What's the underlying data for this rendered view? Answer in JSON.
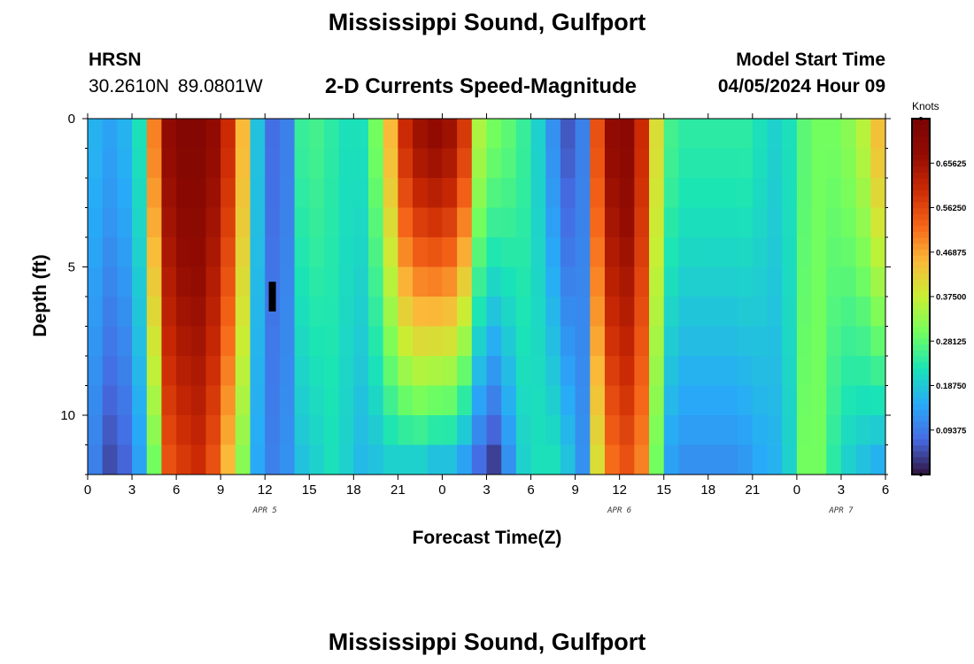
{
  "header": {
    "title": "Mississippi Sound, Gulfport",
    "station_code": "HRSN",
    "station_coords": "30.2610N  89.0801W",
    "subtitle": "2-D Currents Speed-Magnitude",
    "model_start_label": "Model Start Time",
    "model_start_value": "04/05/2024 Hour 09"
  },
  "footer": {
    "title": "Mississippi Sound, Gulfport"
  },
  "chart_data": {
    "type": "heatmap",
    "title": "2-D Currents Speed-Magnitude",
    "xlabel": "Forecast Time(Z)",
    "ylabel": "Depth (ft)",
    "colorbar_label": "Knots",
    "x_range": [
      0,
      54
    ],
    "y_range": [
      0,
      12
    ],
    "x_tick_labels": [
      "0",
      "3",
      "6",
      "9",
      "12",
      "15",
      "18",
      "21",
      "0",
      "3",
      "6",
      "9",
      "12",
      "15",
      "18",
      "21",
      "0",
      "3",
      "6"
    ],
    "y_tick_labels": [
      "0",
      "5",
      "10"
    ],
    "y_tick_values": [
      0,
      5,
      10
    ],
    "date_labels": [
      {
        "text": "APR 5",
        "hour": 12
      },
      {
        "text": "APR 6",
        "hour": 36
      },
      {
        "text": "APR 7",
        "hour": 51
      }
    ],
    "colorbar_range": [
      0,
      0.75
    ],
    "colorbar_ticks": [
      0.09375,
      0.1875,
      0.28125,
      0.375,
      0.46875,
      0.5625,
      0.65625
    ],
    "colorbar_tick_labels": [
      "0.09375",
      "0.18750",
      "0.28125",
      "0.37500",
      "0.46875",
      "0.56250",
      "0.65625"
    ],
    "colormap": "turbo",
    "missing_color": "#000000",
    "missing_cell": {
      "hour": 12.5,
      "depth": [
        5.5,
        6.5
      ]
    },
    "hourly_speed_profiles": [
      {
        "hour": 0,
        "surface": 0.16,
        "bottom": 0.1
      },
      {
        "hour": 1,
        "surface": 0.14,
        "bottom": 0.05
      },
      {
        "hour": 2,
        "surface": 0.16,
        "bottom": 0.07
      },
      {
        "hour": 3,
        "surface": 0.22,
        "bottom": 0.14
      },
      {
        "hour": 4,
        "surface": 0.5,
        "bottom": 0.3
      },
      {
        "hour": 5,
        "surface": 0.68,
        "bottom": 0.55
      },
      {
        "hour": 6,
        "surface": 0.72,
        "bottom": 0.58
      },
      {
        "hour": 7,
        "surface": 0.72,
        "bottom": 0.6
      },
      {
        "hour": 8,
        "surface": 0.68,
        "bottom": 0.55
      },
      {
        "hour": 9,
        "surface": 0.6,
        "bottom": 0.45
      },
      {
        "hour": 10,
        "surface": 0.45,
        "bottom": 0.32
      },
      {
        "hour": 11,
        "surface": 0.18,
        "bottom": 0.15
      },
      {
        "hour": 12,
        "surface": 0.08,
        "bottom": 0.1
      },
      {
        "hour": 13,
        "surface": 0.1,
        "bottom": 0.12
      },
      {
        "hour": 14,
        "surface": 0.25,
        "bottom": 0.18
      },
      {
        "hour": 15,
        "surface": 0.26,
        "bottom": 0.2
      },
      {
        "hour": 16,
        "surface": 0.24,
        "bottom": 0.22
      },
      {
        "hour": 17,
        "surface": 0.22,
        "bottom": 0.2
      },
      {
        "hour": 18,
        "surface": 0.22,
        "bottom": 0.17
      },
      {
        "hour": 19,
        "surface": 0.3,
        "bottom": 0.18
      },
      {
        "hour": 20,
        "surface": 0.45,
        "bottom": 0.2
      },
      {
        "hour": 21,
        "surface": 0.6,
        "bottom": 0.2
      },
      {
        "hour": 22,
        "surface": 0.66,
        "bottom": 0.2
      },
      {
        "hour": 23,
        "surface": 0.68,
        "bottom": 0.18
      },
      {
        "hour": 24,
        "surface": 0.66,
        "bottom": 0.18
      },
      {
        "hour": 25,
        "surface": 0.58,
        "bottom": 0.14
      },
      {
        "hour": 26,
        "surface": 0.35,
        "bottom": 0.08
      },
      {
        "hour": 27,
        "surface": 0.3,
        "bottom": 0.04
      },
      {
        "hour": 28,
        "surface": 0.28,
        "bottom": 0.12
      },
      {
        "hour": 29,
        "surface": 0.25,
        "bottom": 0.2
      },
      {
        "hour": 30,
        "surface": 0.2,
        "bottom": 0.22
      },
      {
        "hour": 31,
        "surface": 0.12,
        "bottom": 0.22
      },
      {
        "hour": 32,
        "surface": 0.06,
        "bottom": 0.18
      },
      {
        "hour": 33,
        "surface": 0.1,
        "bottom": 0.12
      },
      {
        "hour": 34,
        "surface": 0.55,
        "bottom": 0.4
      },
      {
        "hour": 35,
        "surface": 0.68,
        "bottom": 0.52
      },
      {
        "hour": 36,
        "surface": 0.7,
        "bottom": 0.55
      },
      {
        "hour": 37,
        "surface": 0.6,
        "bottom": 0.5
      },
      {
        "hour": 38,
        "surface": 0.4,
        "bottom": 0.3
      },
      {
        "hour": 39,
        "surface": 0.26,
        "bottom": 0.14
      },
      {
        "hour": 40,
        "surface": 0.24,
        "bottom": 0.12
      },
      {
        "hour": 41,
        "surface": 0.24,
        "bottom": 0.12
      },
      {
        "hour": 42,
        "surface": 0.24,
        "bottom": 0.12
      },
      {
        "hour": 43,
        "surface": 0.24,
        "bottom": 0.12
      },
      {
        "hour": 44,
        "surface": 0.24,
        "bottom": 0.13
      },
      {
        "hour": 45,
        "surface": 0.22,
        "bottom": 0.15
      },
      {
        "hour": 46,
        "surface": 0.2,
        "bottom": 0.16
      },
      {
        "hour": 47,
        "surface": 0.22,
        "bottom": 0.2
      },
      {
        "hour": 48,
        "surface": 0.28,
        "bottom": 0.3
      },
      {
        "hour": 49,
        "surface": 0.3,
        "bottom": 0.3
      },
      {
        "hour": 50,
        "surface": 0.3,
        "bottom": 0.24
      },
      {
        "hour": 51,
        "surface": 0.32,
        "bottom": 0.2
      },
      {
        "hour": 52,
        "surface": 0.36,
        "bottom": 0.18
      },
      {
        "hour": 53,
        "surface": 0.44,
        "bottom": 0.16
      }
    ]
  }
}
